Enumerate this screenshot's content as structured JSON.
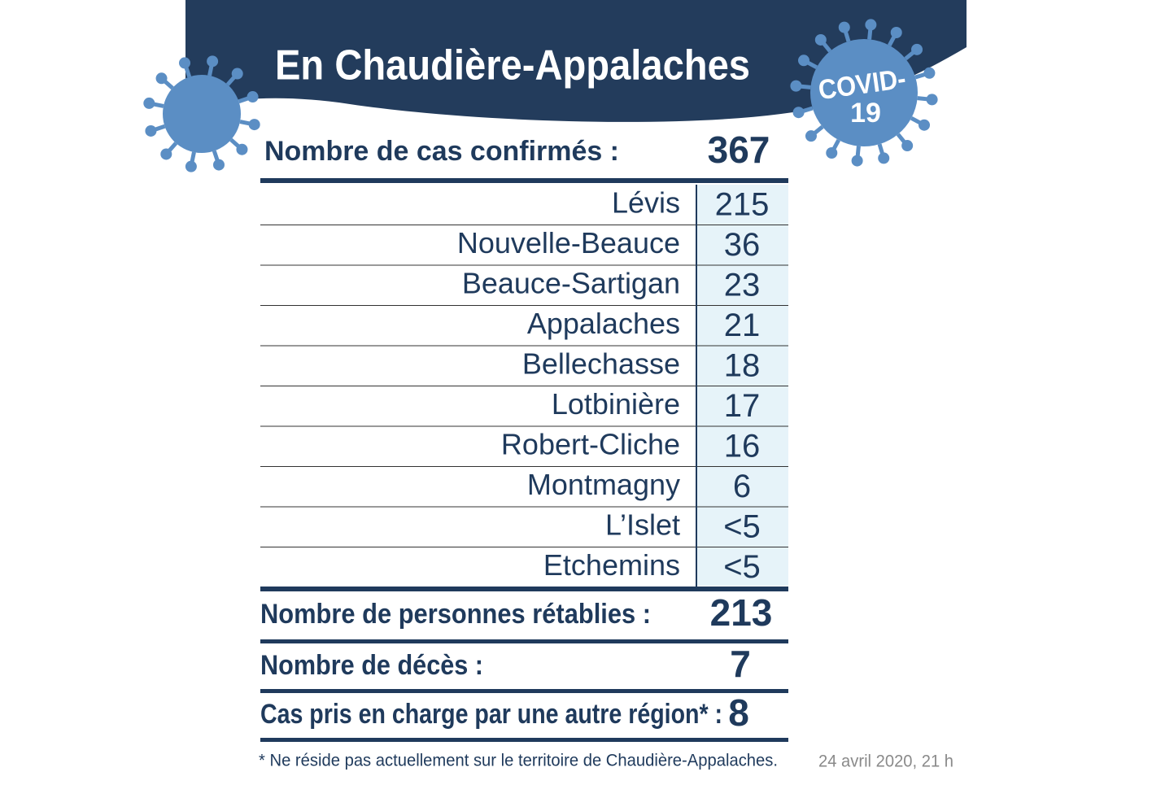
{
  "header": {
    "title": "En Chaudière-Appalaches"
  },
  "badge": {
    "line1": "COVID-",
    "line2": "19"
  },
  "confirmed": {
    "label": "Nombre de cas confirmés :",
    "value": 367
  },
  "table": {
    "rows": [
      [
        "Lévis",
        215
      ],
      [
        "Nouvelle-Beauce",
        36
      ],
      [
        "Beauce-Sartigan",
        23
      ],
      [
        "Appalaches",
        21
      ],
      [
        "Bellechasse",
        18
      ],
      [
        "Lotbinière",
        17
      ],
      [
        "Robert-Cliche",
        16
      ],
      [
        "Montmagny",
        6
      ],
      [
        "L’Islet",
        "<5"
      ],
      [
        "Etchemins",
        "<5"
      ]
    ]
  },
  "recovered": {
    "label": "Nombre de personnes rétablies :",
    "value": 213
  },
  "deaths": {
    "label": "Nombre de décès :",
    "value": 7
  },
  "other_region": {
    "label": "Cas pris en charge par une autre région* :",
    "value": 8
  },
  "footnote": "* Ne réside pas actuellement sur le territoire de Chaudière-Appalaches.",
  "date": "24 avril 2020, 21 h"
}
